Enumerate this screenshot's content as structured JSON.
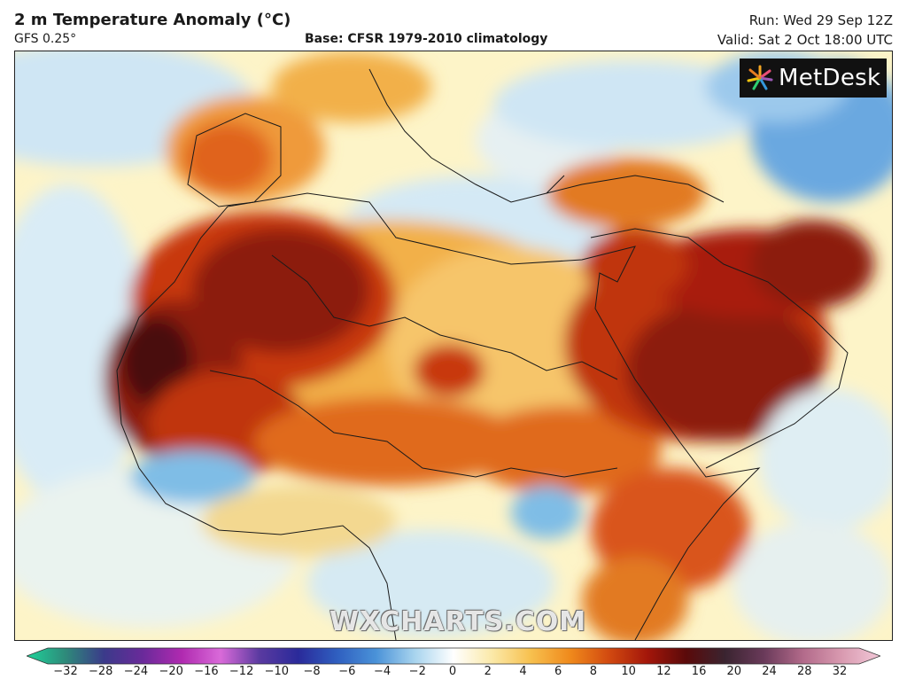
{
  "header": {
    "title": "2 m Temperature Anomaly (°C)",
    "model": "GFS 0.25°",
    "base": "Base: CFSR 1979-2010 climatology",
    "run": "Run: Wed 29 Sep 12Z",
    "valid": "Valid: Sat 2 Oct 18:00 UTC"
  },
  "logo": {
    "text": "MetDesk",
    "icon": "metdesk-burst-icon"
  },
  "watermark": "WXCHARTS.COM",
  "colorbar": {
    "ticks": [
      "−32",
      "−28",
      "−24",
      "−20",
      "−16",
      "−12",
      "−10",
      "−8",
      "−6",
      "−4",
      "−2",
      "0",
      "2",
      "4",
      "6",
      "8",
      "10",
      "12",
      "16",
      "20",
      "24",
      "28",
      "32"
    ],
    "stops": [
      "#1fd39a",
      "#2e8a7a",
      "#3b3a8a",
      "#6a2a9a",
      "#b02ab0",
      "#d96ad9",
      "#5a3aa0",
      "#2a2a9a",
      "#2f5fc0",
      "#4a92d8",
      "#a8d4ee",
      "#ffffff",
      "#fbe9a8",
      "#f7c04e",
      "#f08a1c",
      "#d24a10",
      "#a3160a",
      "#5a0a0a",
      "#3a2430",
      "#6a3a5a",
      "#b26a8a",
      "#d99ab0",
      "#f2c8d8"
    ]
  },
  "colors": {
    "ocean_neutral": "#fdf4c8",
    "cool_light": "#d2e9f5",
    "cool": "#7fbde6",
    "warm": "#f7c04e",
    "hot": "#e0641a",
    "very_hot": "#a81e0c",
    "extreme": "#5a0c0c",
    "coast": "#1a1a1a"
  }
}
